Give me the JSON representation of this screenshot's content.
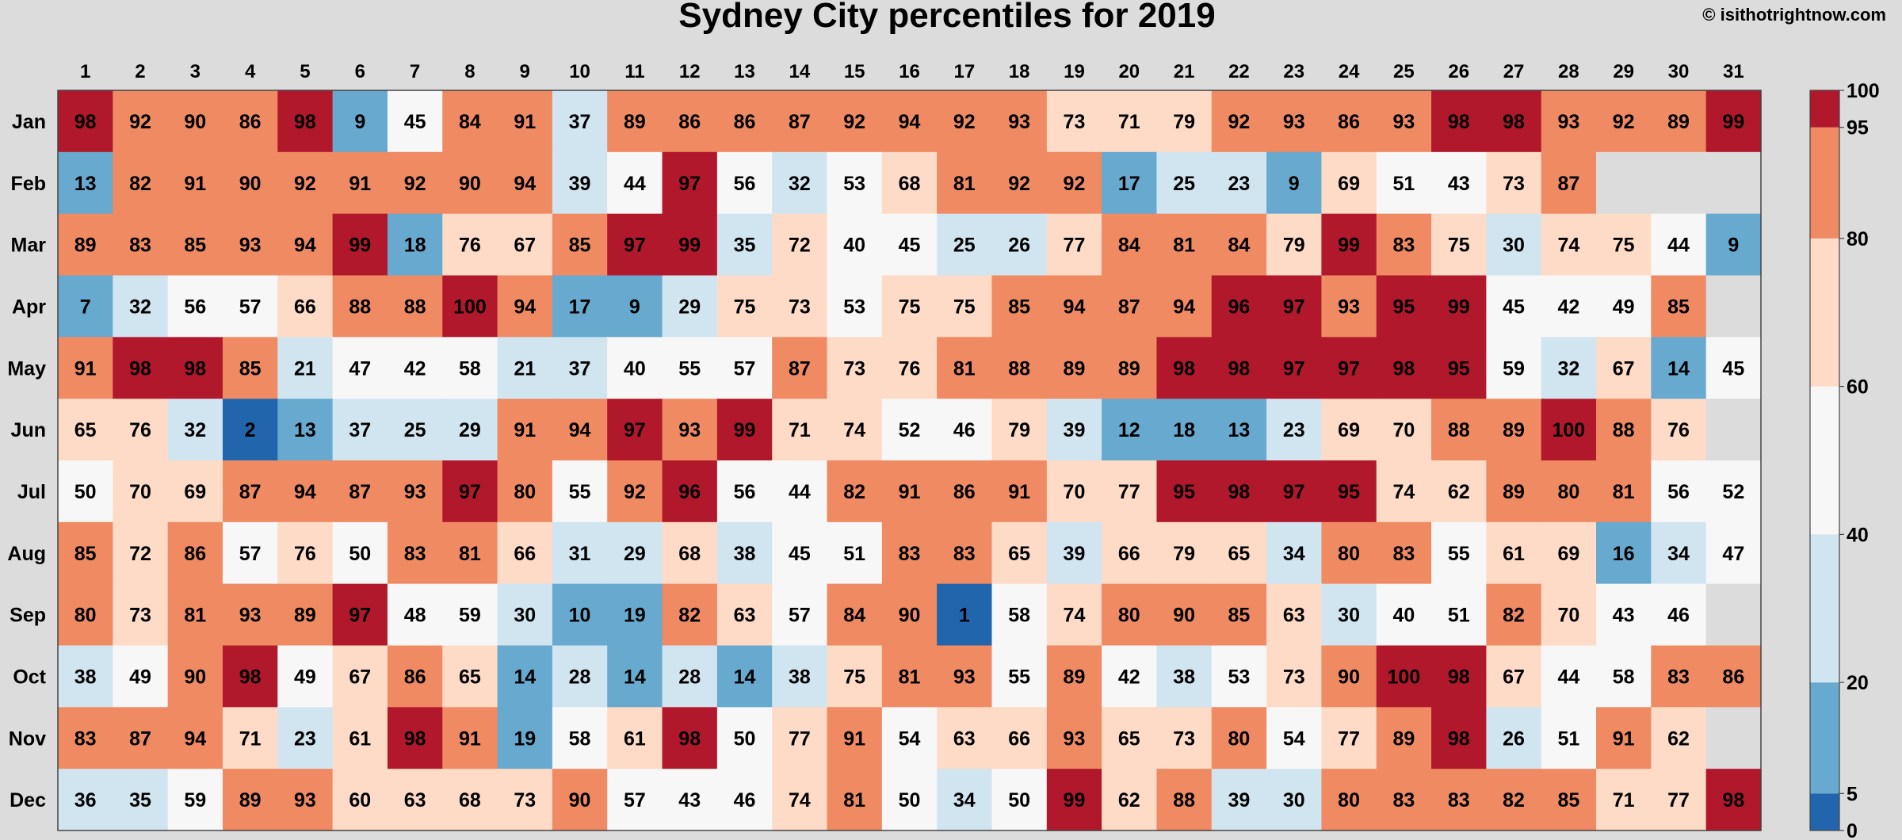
{
  "chart_data": {
    "type": "heatmap",
    "title": "Sydney City percentiles for 2019",
    "credit": "© isithotrightnow.com",
    "columns": [
      "1",
      "2",
      "3",
      "4",
      "5",
      "6",
      "7",
      "8",
      "9",
      "10",
      "11",
      "12",
      "13",
      "14",
      "15",
      "16",
      "17",
      "18",
      "19",
      "20",
      "21",
      "22",
      "23",
      "24",
      "25",
      "26",
      "27",
      "28",
      "29",
      "30",
      "31"
    ],
    "rows": [
      "Jan",
      "Feb",
      "Mar",
      "Apr",
      "May",
      "Jun",
      "Jul",
      "Aug",
      "Sep",
      "Oct",
      "Nov",
      "Dec"
    ],
    "values": [
      [
        98,
        92,
        90,
        86,
        98,
        9,
        45,
        84,
        91,
        37,
        89,
        86,
        86,
        87,
        92,
        94,
        92,
        93,
        73,
        71,
        79,
        92,
        93,
        86,
        93,
        98,
        98,
        93,
        92,
        89,
        99
      ],
      [
        13,
        82,
        91,
        90,
        92,
        91,
        92,
        90,
        94,
        39,
        44,
        97,
        56,
        32,
        53,
        68,
        81,
        92,
        92,
        17,
        25,
        23,
        9,
        69,
        51,
        43,
        73,
        87,
        null,
        null,
        null
      ],
      [
        89,
        83,
        85,
        93,
        94,
        99,
        18,
        76,
        67,
        85,
        97,
        99,
        35,
        72,
        40,
        45,
        25,
        26,
        77,
        84,
        81,
        84,
        79,
        99,
        83,
        75,
        30,
        74,
        75,
        44,
        9
      ],
      [
        7,
        32,
        56,
        57,
        66,
        88,
        88,
        100,
        94,
        17,
        9,
        29,
        75,
        73,
        53,
        75,
        75,
        85,
        94,
        87,
        94,
        96,
        97,
        93,
        95,
        99,
        45,
        42,
        49,
        85,
        null
      ],
      [
        91,
        98,
        98,
        85,
        21,
        47,
        42,
        58,
        21,
        37,
        40,
        55,
        57,
        87,
        73,
        76,
        81,
        88,
        89,
        89,
        98,
        98,
        97,
        97,
        98,
        95,
        59,
        32,
        67,
        14,
        45
      ],
      [
        65,
        76,
        32,
        2,
        13,
        37,
        25,
        29,
        91,
        94,
        97,
        93,
        99,
        71,
        74,
        52,
        46,
        79,
        39,
        12,
        18,
        13,
        23,
        69,
        70,
        88,
        89,
        100,
        88,
        76,
        null
      ],
      [
        50,
        70,
        69,
        87,
        94,
        87,
        93,
        97,
        80,
        55,
        92,
        96,
        56,
        44,
        82,
        91,
        86,
        91,
        70,
        77,
        95,
        98,
        97,
        95,
        74,
        62,
        89,
        80,
        81,
        56,
        52
      ],
      [
        85,
        72,
        86,
        57,
        76,
        50,
        83,
        81,
        66,
        31,
        29,
        68,
        38,
        45,
        51,
        83,
        83,
        65,
        39,
        66,
        79,
        65,
        34,
        80,
        83,
        55,
        61,
        69,
        16,
        34,
        47
      ],
      [
        80,
        73,
        81,
        93,
        89,
        97,
        48,
        59,
        30,
        10,
        19,
        82,
        63,
        57,
        84,
        90,
        1,
        58,
        74,
        80,
        90,
        85,
        63,
        30,
        40,
        51,
        82,
        70,
        43,
        46,
        null
      ],
      [
        38,
        49,
        90,
        98,
        49,
        67,
        86,
        65,
        14,
        28,
        14,
        28,
        14,
        38,
        75,
        81,
        93,
        55,
        89,
        42,
        38,
        53,
        73,
        90,
        100,
        98,
        67,
        44,
        58,
        83,
        86
      ],
      [
        83,
        87,
        94,
        71,
        23,
        61,
        98,
        91,
        19,
        58,
        61,
        98,
        50,
        77,
        91,
        54,
        63,
        66,
        93,
        65,
        73,
        80,
        54,
        77,
        89,
        98,
        26,
        51,
        91,
        62,
        null
      ],
      [
        36,
        35,
        59,
        89,
        93,
        60,
        63,
        68,
        73,
        90,
        57,
        43,
        46,
        74,
        81,
        50,
        34,
        50,
        99,
        62,
        88,
        39,
        30,
        80,
        83,
        83,
        82,
        85,
        71,
        77,
        98
      ]
    ],
    "colorbar": {
      "ticks": [
        "0",
        "5",
        "20",
        "40",
        "60",
        "80",
        "95",
        "100"
      ],
      "bins": [
        {
          "min": 0,
          "max": 5,
          "color": "#2166ac"
        },
        {
          "min": 5,
          "max": 20,
          "color": "#67a9cf"
        },
        {
          "min": 20,
          "max": 40,
          "color": "#d1e5f0"
        },
        {
          "min": 40,
          "max": 60,
          "color": "#f7f7f7"
        },
        {
          "min": 60,
          "max": 80,
          "color": "#fddbc7"
        },
        {
          "min": 80,
          "max": 95,
          "color": "#ef8a62"
        },
        {
          "min": 95,
          "max": 100,
          "color": "#b2182b"
        }
      ],
      "missing_color": "#dcdcdc"
    }
  }
}
